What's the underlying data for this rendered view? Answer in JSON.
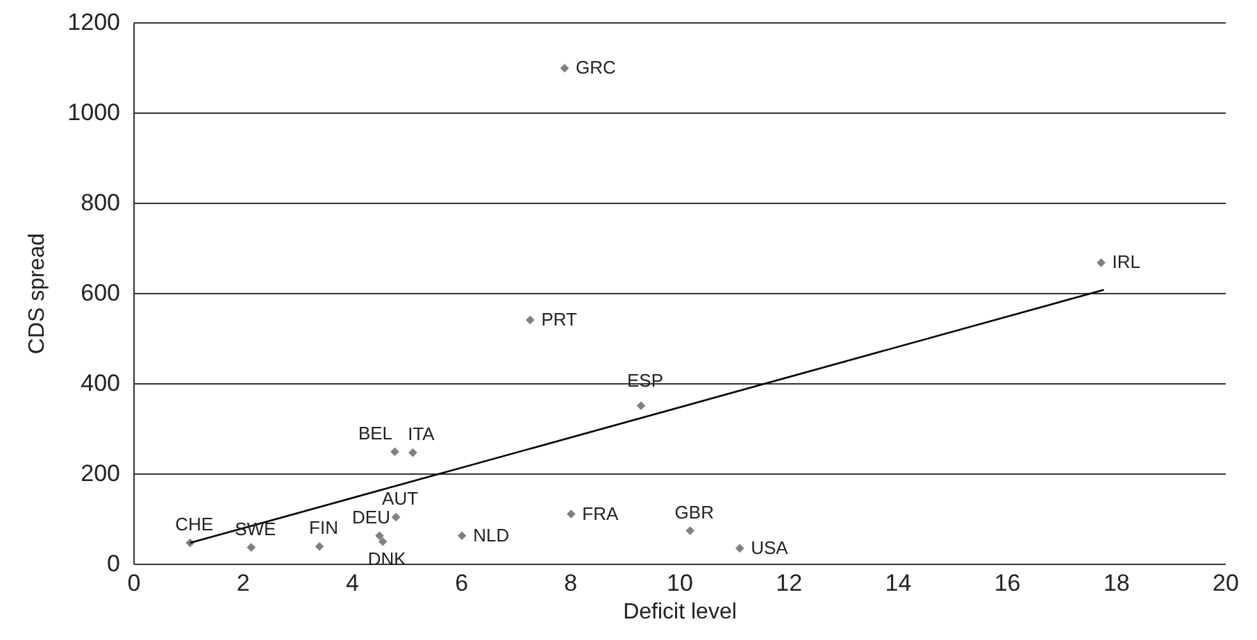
{
  "chart_data": {
    "type": "scatter",
    "xlabel": "Deficit level",
    "ylabel": "CDS spread",
    "xlim": [
      0,
      20
    ],
    "xticks": [
      0,
      2,
      4,
      6,
      8,
      10,
      12,
      14,
      16,
      18,
      20
    ],
    "ylim": [
      0,
      1200
    ],
    "yticks": [
      0,
      200,
      400,
      600,
      800,
      1000,
      1200
    ],
    "grid": "y",
    "series": [
      {
        "color": "#808080",
        "marker": "diamond",
        "x": [
          7.9,
          17.73,
          7.27,
          9.3,
          4.79,
          5.12,
          1.04,
          2.16,
          3.41,
          4.51,
          4.81,
          4.57,
          6.02,
          8.02,
          10.2,
          11.11
        ],
        "values": [
          1098,
          667,
          540,
          350,
          248,
          246,
          46,
          36,
          38,
          62,
          103,
          49,
          62,
          110,
          73,
          34
        ]
      },
      {
        "type": "line",
        "color": "#000000",
        "x": [
          1.04,
          17.78
        ],
        "values": [
          46,
          607
        ]
      }
    ],
    "annotations": [
      {
        "text": "GRC",
        "x": 7.9,
        "y": 1098
      },
      {
        "text": "IRL",
        "x": 17.73,
        "y": 667
      },
      {
        "text": "PRT",
        "x": 7.27,
        "y": 540
      },
      {
        "text": "ESP",
        "x": 9.3,
        "y": 350
      },
      {
        "text": "BEL",
        "x": 4.79,
        "y": 248
      },
      {
        "text": "ITA",
        "x": 5.12,
        "y": 246
      },
      {
        "text": "CHE",
        "x": 1.04,
        "y": 46
      },
      {
        "text": "SWE",
        "x": 2.16,
        "y": 36
      },
      {
        "text": "FIN",
        "x": 3.41,
        "y": 38
      },
      {
        "text": "DEU",
        "x": 4.51,
        "y": 62
      },
      {
        "text": "AUT",
        "x": 4.81,
        "y": 103
      },
      {
        "text": "DNK",
        "x": 4.57,
        "y": 49
      },
      {
        "text": "NLD",
        "x": 6.02,
        "y": 62
      },
      {
        "text": "FRA",
        "x": 8.02,
        "y": 110
      },
      {
        "text": "GBR",
        "x": 10.2,
        "y": 73
      },
      {
        "text": "USA",
        "x": 11.11,
        "y": 34
      }
    ]
  }
}
